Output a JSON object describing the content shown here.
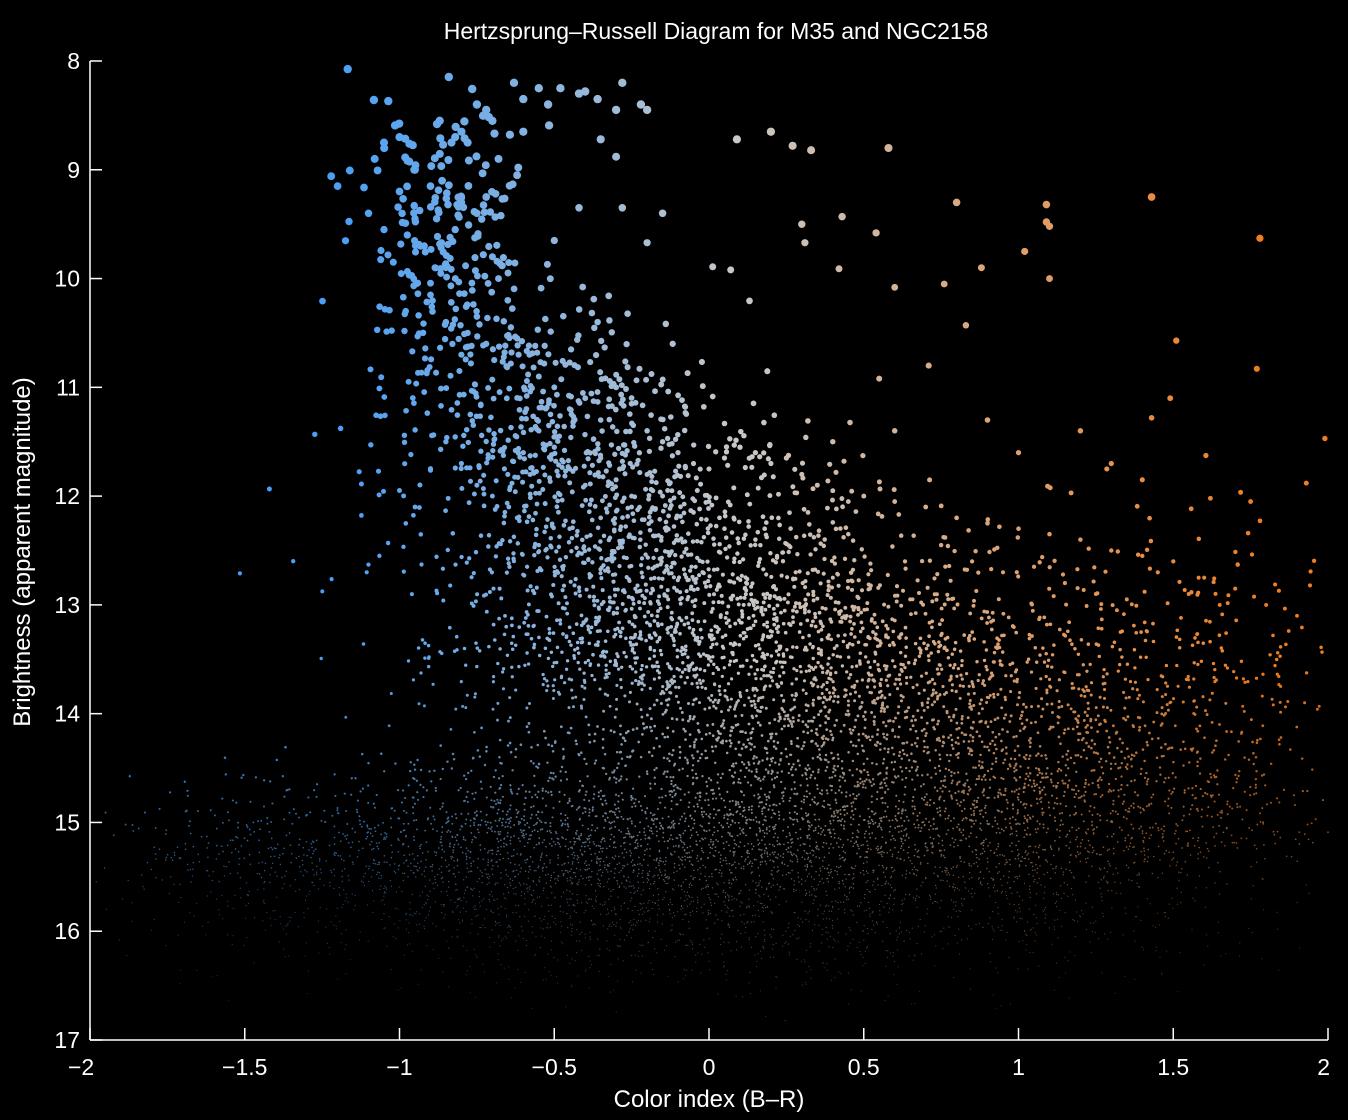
{
  "chart_data": {
    "type": "scatter",
    "title": "Hertzsprung–Russell Diagram for M35 and NGC2158",
    "xlabel": "Color index (B–R)",
    "ylabel": "Brightness (apparent magnitude)",
    "xlim": [
      -2,
      2
    ],
    "ylim": [
      17,
      8
    ],
    "y_axis_inverted": true,
    "x_ticks": [
      -2,
      -1.5,
      -1,
      -0.5,
      0,
      0.5,
      1,
      1.5,
      2
    ],
    "x_tick_labels": [
      "−2",
      "−1.5",
      "−1",
      "−0.5",
      "0",
      "0.5",
      "1",
      "1.5",
      "2"
    ],
    "y_ticks": [
      8,
      9,
      10,
      11,
      12,
      13,
      14,
      15,
      16,
      17
    ],
    "y_tick_labels": [
      "8",
      "9",
      "10",
      "11",
      "12",
      "13",
      "14",
      "15",
      "16",
      "17"
    ],
    "grid": false,
    "background_color": "#000000",
    "foreground_color": "#ffffff",
    "color_scale": {
      "blue": "#4a9ff5",
      "neutral": "#c8c8c8",
      "orange": "#f07d1e",
      "x_blue": -1.2,
      "x_neutral": 0.1,
      "x_orange": 1.8
    },
    "series": [
      {
        "description": "bright stars (large points)",
        "points": [
          [
            -1.2,
            9.15
          ],
          [
            -1.08,
            8.9
          ],
          [
            -1.05,
            8.75
          ],
          [
            -1.0,
            8.7
          ],
          [
            -0.95,
            9.0
          ],
          [
            -0.9,
            9.15
          ],
          [
            -0.87,
            8.55
          ],
          [
            -0.82,
            8.7
          ],
          [
            -0.8,
            8.65
          ],
          [
            -0.78,
            8.75
          ],
          [
            -0.75,
            8.4
          ],
          [
            -0.72,
            8.45
          ],
          [
            -0.7,
            8.55
          ],
          [
            -0.68,
            8.9
          ],
          [
            -0.63,
            8.2
          ],
          [
            -0.6,
            8.35
          ],
          [
            -0.55,
            8.25
          ],
          [
            -0.52,
            8.4
          ],
          [
            -0.48,
            8.25
          ],
          [
            -0.42,
            8.3
          ],
          [
            -0.4,
            8.28
          ],
          [
            -0.36,
            8.35
          ],
          [
            -0.3,
            8.45
          ],
          [
            -0.28,
            8.2
          ],
          [
            -0.22,
            8.4
          ],
          [
            -0.2,
            8.45
          ],
          [
            -0.6,
            8.65
          ],
          [
            -0.35,
            8.72
          ],
          [
            -0.3,
            8.88
          ],
          [
            -0.15,
            9.4
          ],
          [
            -0.2,
            9.67
          ],
          [
            -0.28,
            9.35
          ],
          [
            -0.42,
            9.35
          ],
          [
            -0.5,
            9.65
          ],
          [
            -0.62,
            9.05
          ],
          [
            -1.1,
            9.4
          ],
          [
            -1.05,
            9.55
          ],
          [
            -1.02,
            9.85
          ],
          [
            -1.0,
            9.2
          ],
          [
            -0.95,
            9.45
          ],
          [
            -0.92,
            9.7
          ],
          [
            -0.88,
            9.45
          ],
          [
            -0.85,
            9.9
          ],
          [
            -0.82,
            9.55
          ],
          [
            -0.8,
            9.3
          ],
          [
            -0.75,
            9.4
          ],
          [
            -0.72,
            9.25
          ],
          [
            -0.7,
            9.8
          ],
          [
            -0.68,
            10.0
          ],
          [
            -0.65,
            10.2
          ],
          [
            -0.75,
            10.35
          ],
          [
            -0.78,
            10.5
          ],
          [
            -0.72,
            10.6
          ],
          [
            -0.8,
            10.7
          ],
          [
            -0.85,
            10.4
          ],
          [
            -0.9,
            10.15
          ],
          [
            -0.98,
            10.3
          ],
          [
            -0.62,
            10.55
          ],
          [
            -0.58,
            10.7
          ],
          [
            -0.55,
            10.9
          ],
          [
            0.09,
            8.72
          ],
          [
            0.2,
            8.65
          ],
          [
            0.27,
            8.78
          ],
          [
            0.33,
            8.82
          ],
          [
            0.58,
            8.8
          ],
          [
            0.8,
            9.3
          ],
          [
            1.09,
            9.32
          ],
          [
            1.09,
            9.48
          ],
          [
            1.1,
            9.52
          ],
          [
            1.43,
            9.25
          ],
          [
            1.78,
            9.63
          ],
          [
            1.02,
            9.75
          ],
          [
            1.1,
            10.0
          ],
          [
            0.88,
            9.9
          ],
          [
            0.76,
            10.05
          ],
          [
            0.6,
            10.08
          ],
          [
            0.3,
            9.5
          ],
          [
            0.31,
            9.67
          ],
          [
            0.43,
            9.43
          ],
          [
            0.54,
            9.58
          ],
          [
            0.42,
            9.91
          ],
          [
            0.07,
            9.92
          ],
          [
            0.83,
            10.43
          ],
          [
            1.51,
            10.57
          ],
          [
            1.77,
            10.83
          ],
          [
            1.43,
            11.28
          ],
          [
            1.49,
            11.1
          ],
          [
            1.99,
            11.47
          ],
          [
            0.71,
            10.8
          ],
          [
            0.55,
            10.92
          ]
        ]
      },
      {
        "description": "intermediate stars (medium points)",
        "points": [
          [
            -0.5,
            11.0
          ],
          [
            -0.45,
            11.2
          ],
          [
            -0.4,
            11.1
          ],
          [
            -0.35,
            11.3
          ],
          [
            -0.3,
            11.0
          ],
          [
            -0.25,
            11.15
          ],
          [
            -0.2,
            11.4
          ],
          [
            -0.15,
            11.5
          ],
          [
            -0.1,
            11.6
          ],
          [
            -0.05,
            11.7
          ],
          [
            0.0,
            11.75
          ],
          [
            0.05,
            11.65
          ],
          [
            0.1,
            11.55
          ],
          [
            0.15,
            11.6
          ],
          [
            0.2,
            11.7
          ],
          [
            0.25,
            11.65
          ],
          [
            0.3,
            11.8
          ],
          [
            0.35,
            11.9
          ],
          [
            0.4,
            11.95
          ],
          [
            0.45,
            12.05
          ],
          [
            0.5,
            12.0
          ],
          [
            0.6,
            12.05
          ],
          [
            0.7,
            12.1
          ],
          [
            0.8,
            12.2
          ],
          [
            0.9,
            12.25
          ],
          [
            1.0,
            12.3
          ],
          [
            1.1,
            12.35
          ],
          [
            1.2,
            12.4
          ],
          [
            1.3,
            12.5
          ],
          [
            1.4,
            12.55
          ],
          [
            1.5,
            12.6
          ],
          [
            1.6,
            12.75
          ],
          [
            1.7,
            12.85
          ],
          [
            1.8,
            13.0
          ],
          [
            1.9,
            13.1
          ],
          [
            -0.95,
            12.1
          ],
          [
            -0.62,
            12.2
          ],
          [
            -0.55,
            12.45
          ],
          [
            -0.45,
            12.3
          ],
          [
            -0.35,
            12.2
          ],
          [
            -0.25,
            12.1
          ],
          [
            -0.15,
            12.0
          ],
          [
            -0.05,
            12.15
          ],
          [
            0.05,
            12.3
          ],
          [
            0.15,
            12.4
          ],
          [
            0.22,
            12.55
          ],
          [
            0.28,
            12.7
          ],
          [
            0.4,
            12.75
          ],
          [
            0.52,
            12.85
          ],
          [
            0.65,
            12.95
          ],
          [
            0.75,
            12.45
          ],
          [
            0.85,
            12.6
          ],
          [
            0.95,
            12.7
          ],
          [
            1.05,
            12.65
          ],
          [
            1.15,
            12.8
          ],
          [
            1.25,
            12.9
          ],
          [
            1.35,
            12.95
          ],
          [
            1.45,
            12.7
          ],
          [
            1.55,
            12.9
          ],
          [
            1.65,
            13.0
          ],
          [
            -0.85,
            11.5
          ],
          [
            -0.8,
            11.7
          ],
          [
            -0.75,
            11.9
          ],
          [
            -0.7,
            12.0
          ],
          [
            -0.65,
            11.8
          ],
          [
            -0.6,
            11.6
          ],
          [
            -0.55,
            11.4
          ],
          [
            -0.5,
            11.55
          ],
          [
            -0.45,
            11.75
          ],
          [
            -0.4,
            11.9
          ],
          [
            -0.35,
            11.65
          ],
          [
            -0.3,
            11.85
          ],
          [
            -0.25,
            12.0
          ],
          [
            -0.2,
            11.8
          ],
          [
            -0.12,
            11.95
          ],
          [
            0.0,
            12.05
          ],
          [
            0.08,
            12.2
          ],
          [
            0.18,
            12.3
          ],
          [
            0.32,
            12.15
          ],
          [
            0.45,
            12.35
          ],
          [
            1.2,
            11.4
          ],
          [
            1.3,
            11.7
          ],
          [
            1.4,
            11.85
          ],
          [
            1.62,
            12.02
          ],
          [
            1.75,
            12.05
          ],
          [
            1.93,
            11.88
          ],
          [
            1.0,
            11.6
          ],
          [
            0.9,
            11.3
          ],
          [
            0.6,
            11.4
          ],
          [
            0.4,
            11.5
          ]
        ]
      }
    ],
    "density_clusters": [
      {
        "cx": -0.55,
        "cy": 11.3,
        "sx": 0.25,
        "sy": 0.55,
        "n": 380
      },
      {
        "cx": -0.85,
        "cy": 9.6,
        "sx": 0.14,
        "sy": 0.6,
        "n": 200
      },
      {
        "cx": -0.2,
        "cy": 12.6,
        "sx": 0.35,
        "sy": 0.7,
        "n": 900
      },
      {
        "cx": 0.15,
        "cy": 13.5,
        "sx": 0.45,
        "sy": 0.6,
        "n": 1100
      },
      {
        "cx": 0.6,
        "cy": 14.0,
        "sx": 0.55,
        "sy": 0.55,
        "n": 1000
      },
      {
        "cx": 0.1,
        "cy": 15.2,
        "sx": 0.7,
        "sy": 0.45,
        "n": 2600
      },
      {
        "cx": -0.7,
        "cy": 15.35,
        "sx": 0.45,
        "sy": 0.35,
        "n": 900
      },
      {
        "cx": 1.0,
        "cy": 15.0,
        "sx": 0.45,
        "sy": 0.45,
        "n": 900
      },
      {
        "cx": 1.5,
        "cy": 13.8,
        "sx": 0.3,
        "sy": 0.8,
        "n": 300
      },
      {
        "cx": -1.5,
        "cy": 15.4,
        "sx": 0.25,
        "sy": 0.35,
        "n": 160
      },
      {
        "cx": 0.1,
        "cy": 16.0,
        "sx": 0.8,
        "sy": 0.3,
        "n": 700
      }
    ]
  }
}
